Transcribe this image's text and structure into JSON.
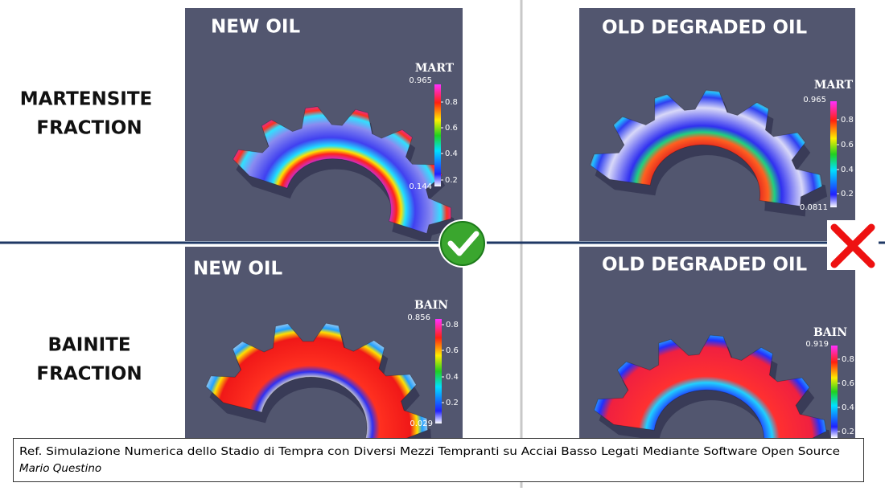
{
  "rows": [
    {
      "lines": [
        "MARTENSITE",
        "FRACTION"
      ]
    },
    {
      "lines": [
        "BAINITE",
        "FRACTION"
      ]
    }
  ],
  "panels": [
    {
      "title": "NEW OIL",
      "colorbar": {
        "label": "MART",
        "max": "0.965",
        "ticks": [
          "0.8",
          "0.6",
          "0.4",
          "0.2"
        ],
        "min": "0.144"
      }
    },
    {
      "title": "OLD DEGRADED OIL",
      "colorbar": {
        "label": "MART",
        "max": "0.965",
        "ticks": [
          "0.8",
          "0.6",
          "0.4",
          "0.2"
        ],
        "min": "0.0811"
      }
    },
    {
      "title": "NEW OIL",
      "colorbar": {
        "label": "BAIN",
        "max": "0.856",
        "ticks": [
          "0.8",
          "0.6",
          "0.4",
          "0.2"
        ],
        "min": "0.029"
      }
    },
    {
      "title": "OLD DEGRADED OIL",
      "colorbar": {
        "label": "BAIN",
        "max": "0.919",
        "ticks": [
          "0.8",
          "0.6",
          "0.4",
          "0.2"
        ]
      }
    }
  ],
  "reference": {
    "title": "Ref. Simulazione Numerica dello Stadio di Tempra con Diversi Mezzi Tempranti su Acciai Basso Legati Mediante Software Open Source",
    "author": "Mario Questino"
  }
}
